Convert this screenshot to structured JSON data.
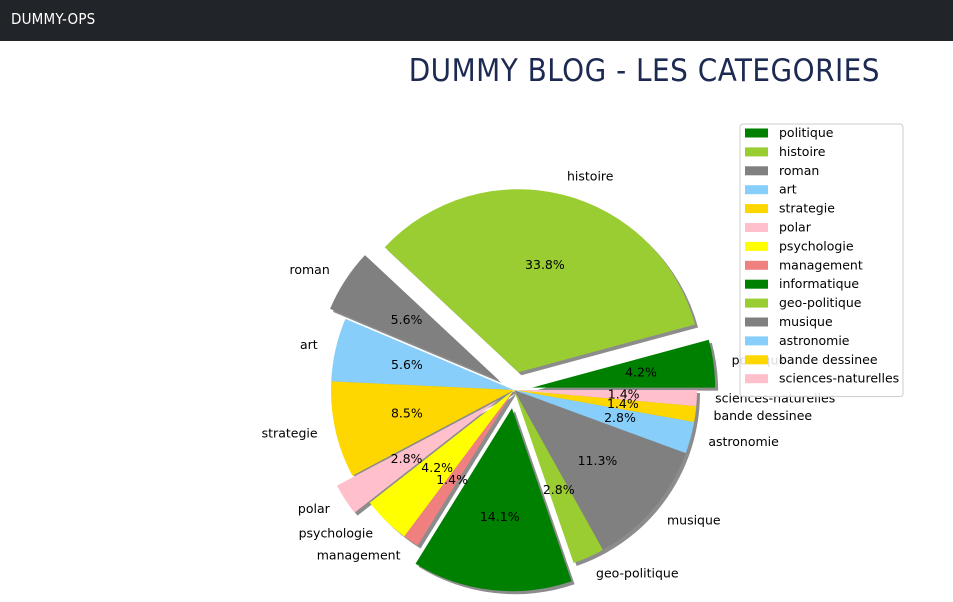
{
  "navbar": {
    "brand": "DUMMY-OPS"
  },
  "page": {
    "title": "DUMMY BLOG - LES CATEGORIES"
  },
  "chart_data": {
    "type": "pie",
    "title": "",
    "shadow": true,
    "legend_position": "top-right",
    "slices": [
      {
        "label": "politique",
        "value": 4.2,
        "pct": "4.2%",
        "color": "#008000",
        "exploded": true
      },
      {
        "label": "histoire",
        "value": 33.8,
        "pct": "33.8%",
        "color": "#9acd32",
        "exploded": true
      },
      {
        "label": "roman",
        "value": 5.6,
        "pct": "5.6%",
        "color": "#808080",
        "exploded": true
      },
      {
        "label": "art",
        "value": 5.6,
        "pct": "5.6%",
        "color": "#87cefa",
        "exploded": false
      },
      {
        "label": "strategie",
        "value": 8.5,
        "pct": "8.5%",
        "color": "#ffd700",
        "exploded": false
      },
      {
        "label": "polar",
        "value": 2.8,
        "pct": "2.8%",
        "color": "#ffc0cb",
        "exploded": true
      },
      {
        "label": "psychologie",
        "value": 4.2,
        "pct": "4.2%",
        "color": "#ffff00",
        "exploded": false
      },
      {
        "label": "management",
        "value": 1.4,
        "pct": "1.4%",
        "color": "#f08080",
        "exploded": false
      },
      {
        "label": "informatique",
        "value": 14.1,
        "pct": "14.1%",
        "color": "#008000",
        "exploded": true
      },
      {
        "label": "geo-politique",
        "value": 2.8,
        "pct": "2.8%",
        "color": "#9acd32",
        "exploded": false
      },
      {
        "label": "musique",
        "value": 11.3,
        "pct": "11.3%",
        "color": "#808080",
        "exploded": false
      },
      {
        "label": "astronomie",
        "value": 2.8,
        "pct": "2.8%",
        "color": "#87cefa",
        "exploded": false
      },
      {
        "label": "bande dessinee",
        "value": 1.4,
        "pct": "1.4%",
        "color": "#ffd700",
        "exploded": false
      },
      {
        "label": "sciences-naturelles",
        "value": 1.4,
        "pct": "1.4%",
        "color": "#ffc0cb",
        "exploded": false
      }
    ]
  }
}
